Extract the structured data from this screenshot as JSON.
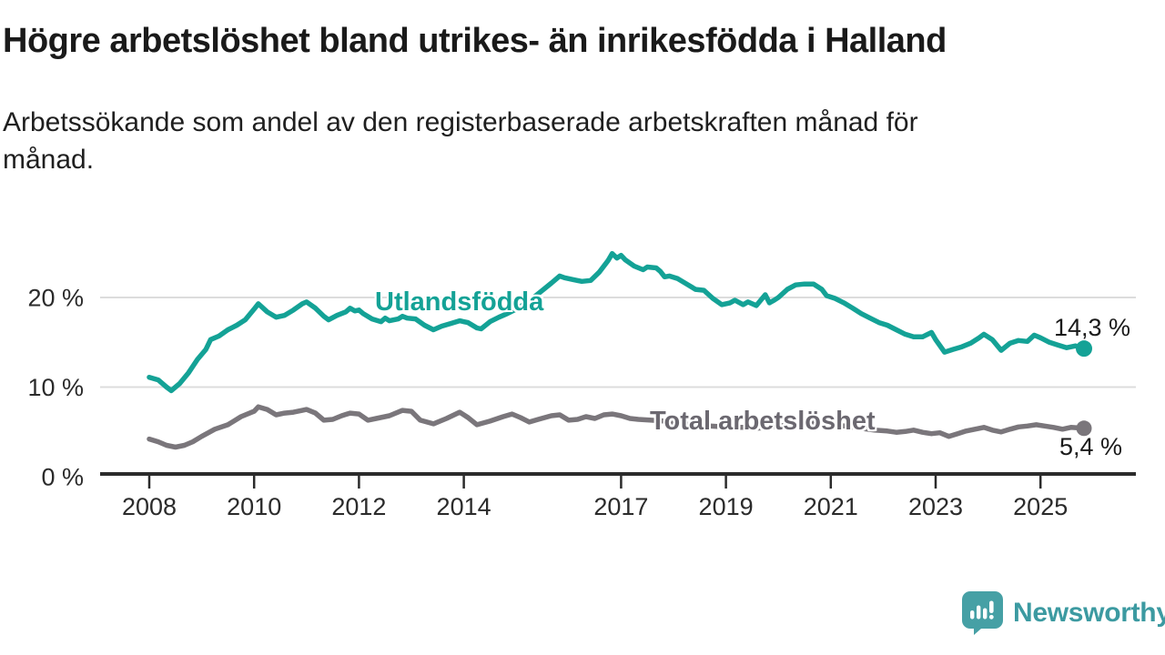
{
  "header": {
    "title": "Högre arbetslöshet bland utrikes- än inrikesfödda i Halland",
    "subtitle": "Arbetssökande som andel av den registerbaserade arbetskraften månad för\nmånad."
  },
  "branding": {
    "logo_text": "Newsworthy",
    "logo_icon": "speech-bubble-with-bar-chart-and-exclamation",
    "logo_box_color": "#46A0A5",
    "logo_text_color": "#3C9AA1"
  },
  "chart_data": {
    "type": "line",
    "title": "Högre arbetslöshet bland utrikes- än inrikesfödda i Halland",
    "subtitle": "Arbetssökande som andel av den registerbaserade arbetskraften månad för månad.",
    "unit": "%",
    "xlim": [
      2007.6,
      2026.3
    ],
    "ylim": [
      0,
      26
    ],
    "grid": "horizontal-only",
    "legend_position": "inline-labels",
    "x_ticks": [
      2008,
      2010,
      2012,
      2014,
      2017,
      2019,
      2021,
      2023,
      2025
    ],
    "y_ticks": [
      {
        "value": 0,
        "label": "0 %"
      },
      {
        "value": 10,
        "label": "10 %"
      },
      {
        "value": 20,
        "label": "20 %"
      }
    ],
    "colors": {
      "utlandsfodda": "#14A296",
      "total": "#7A767B",
      "gridline": "#DCDCDC",
      "axis": "#2B2B2B",
      "axis_text": "#2B2B2B"
    },
    "series": [
      {
        "name": "Utlandsfödda",
        "color": "#14A296",
        "end_label": "14,3 %",
        "end_value": 14.3,
        "points": [
          [
            2008.0,
            11.1
          ],
          [
            2008.17,
            10.8
          ],
          [
            2008.33,
            10.0
          ],
          [
            2008.42,
            9.6
          ],
          [
            2008.58,
            10.4
          ],
          [
            2008.75,
            11.6
          ],
          [
            2008.92,
            13.1
          ],
          [
            2009.08,
            14.2
          ],
          [
            2009.17,
            15.3
          ],
          [
            2009.33,
            15.7
          ],
          [
            2009.5,
            16.4
          ],
          [
            2009.67,
            16.9
          ],
          [
            2009.83,
            17.5
          ],
          [
            2010.0,
            18.7
          ],
          [
            2010.08,
            19.3
          ],
          [
            2010.25,
            18.4
          ],
          [
            2010.42,
            17.8
          ],
          [
            2010.58,
            18.0
          ],
          [
            2010.75,
            18.6
          ],
          [
            2010.92,
            19.3
          ],
          [
            2011.0,
            19.5
          ],
          [
            2011.17,
            18.8
          ],
          [
            2011.33,
            17.9
          ],
          [
            2011.42,
            17.5
          ],
          [
            2011.58,
            18.0
          ],
          [
            2011.75,
            18.4
          ],
          [
            2011.83,
            18.8
          ],
          [
            2011.92,
            18.5
          ],
          [
            2012.0,
            18.6
          ],
          [
            2012.08,
            18.2
          ],
          [
            2012.25,
            17.6
          ],
          [
            2012.42,
            17.3
          ],
          [
            2012.5,
            17.7
          ],
          [
            2012.58,
            17.4
          ],
          [
            2012.75,
            17.6
          ],
          [
            2012.83,
            17.9
          ],
          [
            2012.92,
            17.7
          ],
          [
            2013.08,
            17.6
          ],
          [
            2013.25,
            16.9
          ],
          [
            2013.42,
            16.4
          ],
          [
            2013.58,
            16.8
          ],
          [
            2013.75,
            17.1
          ],
          [
            2013.92,
            17.4
          ],
          [
            2014.08,
            17.2
          ],
          [
            2014.25,
            16.6
          ],
          [
            2014.33,
            16.5
          ],
          [
            2014.5,
            17.3
          ],
          [
            2014.67,
            17.8
          ],
          [
            2014.83,
            18.2
          ],
          [
            2015.0,
            18.7
          ],
          [
            2015.17,
            19.3
          ],
          [
            2015.33,
            20.0
          ],
          [
            2015.5,
            20.8
          ],
          [
            2015.67,
            21.6
          ],
          [
            2015.83,
            22.4
          ],
          [
            2015.92,
            22.2
          ],
          [
            2016.08,
            22.0
          ],
          [
            2016.25,
            21.8
          ],
          [
            2016.42,
            21.9
          ],
          [
            2016.58,
            22.8
          ],
          [
            2016.75,
            24.1
          ],
          [
            2016.83,
            24.9
          ],
          [
            2016.92,
            24.4
          ],
          [
            2017.0,
            24.7
          ],
          [
            2017.08,
            24.2
          ],
          [
            2017.25,
            23.5
          ],
          [
            2017.42,
            23.1
          ],
          [
            2017.5,
            23.4
          ],
          [
            2017.67,
            23.3
          ],
          [
            2017.75,
            22.9
          ],
          [
            2017.83,
            22.3
          ],
          [
            2017.92,
            22.4
          ],
          [
            2018.08,
            22.1
          ],
          [
            2018.25,
            21.5
          ],
          [
            2018.42,
            20.9
          ],
          [
            2018.58,
            20.8
          ],
          [
            2018.75,
            19.9
          ],
          [
            2018.92,
            19.2
          ],
          [
            2019.08,
            19.4
          ],
          [
            2019.17,
            19.7
          ],
          [
            2019.33,
            19.2
          ],
          [
            2019.42,
            19.5
          ],
          [
            2019.58,
            19.1
          ],
          [
            2019.75,
            20.3
          ],
          [
            2019.83,
            19.4
          ],
          [
            2019.92,
            19.7
          ],
          [
            2020.0,
            20.0
          ],
          [
            2020.17,
            20.9
          ],
          [
            2020.33,
            21.4
          ],
          [
            2020.5,
            21.5
          ],
          [
            2020.67,
            21.5
          ],
          [
            2020.83,
            20.9
          ],
          [
            2020.92,
            20.2
          ],
          [
            2021.08,
            19.9
          ],
          [
            2021.25,
            19.4
          ],
          [
            2021.42,
            18.8
          ],
          [
            2021.58,
            18.2
          ],
          [
            2021.75,
            17.7
          ],
          [
            2021.92,
            17.2
          ],
          [
            2022.08,
            16.9
          ],
          [
            2022.25,
            16.4
          ],
          [
            2022.42,
            15.9
          ],
          [
            2022.58,
            15.6
          ],
          [
            2022.75,
            15.6
          ],
          [
            2022.92,
            16.1
          ],
          [
            2023.0,
            15.3
          ],
          [
            2023.17,
            13.9
          ],
          [
            2023.33,
            14.2
          ],
          [
            2023.5,
            14.5
          ],
          [
            2023.67,
            14.9
          ],
          [
            2023.83,
            15.5
          ],
          [
            2023.92,
            15.9
          ],
          [
            2024.08,
            15.3
          ],
          [
            2024.25,
            14.1
          ],
          [
            2024.42,
            14.9
          ],
          [
            2024.58,
            15.2
          ],
          [
            2024.75,
            15.1
          ],
          [
            2024.88,
            15.8
          ],
          [
            2025.0,
            15.5
          ],
          [
            2025.17,
            15.0
          ],
          [
            2025.33,
            14.7
          ],
          [
            2025.5,
            14.4
          ],
          [
            2025.67,
            14.6
          ],
          [
            2025.83,
            14.3
          ]
        ]
      },
      {
        "name": "Total arbetslöshet",
        "color": "#7A767B",
        "end_label": "5,4 %",
        "end_value": 5.4,
        "points": [
          [
            2008.0,
            4.2
          ],
          [
            2008.17,
            3.9
          ],
          [
            2008.33,
            3.5
          ],
          [
            2008.5,
            3.3
          ],
          [
            2008.67,
            3.5
          ],
          [
            2008.83,
            3.9
          ],
          [
            2009.0,
            4.5
          ],
          [
            2009.25,
            5.3
          ],
          [
            2009.5,
            5.8
          ],
          [
            2009.75,
            6.7
          ],
          [
            2010.0,
            7.3
          ],
          [
            2010.08,
            7.8
          ],
          [
            2010.25,
            7.5
          ],
          [
            2010.42,
            6.9
          ],
          [
            2010.58,
            7.1
          ],
          [
            2010.75,
            7.2
          ],
          [
            2010.92,
            7.4
          ],
          [
            2011.0,
            7.5
          ],
          [
            2011.17,
            7.1
          ],
          [
            2011.33,
            6.3
          ],
          [
            2011.5,
            6.4
          ],
          [
            2011.67,
            6.8
          ],
          [
            2011.83,
            7.1
          ],
          [
            2012.0,
            7.0
          ],
          [
            2012.17,
            6.3
          ],
          [
            2012.33,
            6.5
          ],
          [
            2012.58,
            6.8
          ],
          [
            2012.83,
            7.4
          ],
          [
            2013.0,
            7.3
          ],
          [
            2013.17,
            6.3
          ],
          [
            2013.42,
            5.9
          ],
          [
            2013.67,
            6.5
          ],
          [
            2013.92,
            7.2
          ],
          [
            2014.08,
            6.6
          ],
          [
            2014.25,
            5.8
          ],
          [
            2014.5,
            6.2
          ],
          [
            2014.75,
            6.7
          ],
          [
            2014.92,
            7.0
          ],
          [
            2015.08,
            6.6
          ],
          [
            2015.25,
            6.1
          ],
          [
            2015.42,
            6.4
          ],
          [
            2015.67,
            6.8
          ],
          [
            2015.83,
            6.9
          ],
          [
            2016.0,
            6.3
          ],
          [
            2016.17,
            6.4
          ],
          [
            2016.33,
            6.7
          ],
          [
            2016.5,
            6.5
          ],
          [
            2016.67,
            6.9
          ],
          [
            2016.83,
            7.0
          ],
          [
            2017.0,
            6.8
          ],
          [
            2017.17,
            6.5
          ],
          [
            2017.33,
            6.4
          ],
          [
            2017.58,
            6.3
          ],
          [
            2017.83,
            6.2
          ],
          [
            2018.08,
            6.0
          ],
          [
            2018.33,
            5.8
          ],
          [
            2018.58,
            5.7
          ],
          [
            2018.83,
            5.6
          ],
          [
            2019.08,
            5.5
          ],
          [
            2019.33,
            5.5
          ],
          [
            2019.58,
            5.4
          ],
          [
            2019.83,
            5.5
          ],
          [
            2020.08,
            5.7
          ],
          [
            2020.33,
            6.0
          ],
          [
            2020.58,
            6.1
          ],
          [
            2020.83,
            6.0
          ],
          [
            2021.08,
            5.8
          ],
          [
            2021.33,
            5.6
          ],
          [
            2021.58,
            5.4
          ],
          [
            2021.83,
            5.2
          ],
          [
            2022.08,
            5.1
          ],
          [
            2022.25,
            4.95
          ],
          [
            2022.42,
            5.05
          ],
          [
            2022.58,
            5.2
          ],
          [
            2022.75,
            4.95
          ],
          [
            2022.92,
            4.8
          ],
          [
            2023.08,
            4.9
          ],
          [
            2023.25,
            4.5
          ],
          [
            2023.42,
            4.8
          ],
          [
            2023.58,
            5.1
          ],
          [
            2023.75,
            5.3
          ],
          [
            2023.92,
            5.5
          ],
          [
            2024.08,
            5.2
          ],
          [
            2024.25,
            5.0
          ],
          [
            2024.42,
            5.3
          ],
          [
            2024.58,
            5.55
          ],
          [
            2024.75,
            5.65
          ],
          [
            2024.92,
            5.8
          ],
          [
            2025.08,
            5.65
          ],
          [
            2025.25,
            5.5
          ],
          [
            2025.42,
            5.3
          ],
          [
            2025.58,
            5.5
          ],
          [
            2025.83,
            5.4
          ]
        ]
      }
    ]
  }
}
